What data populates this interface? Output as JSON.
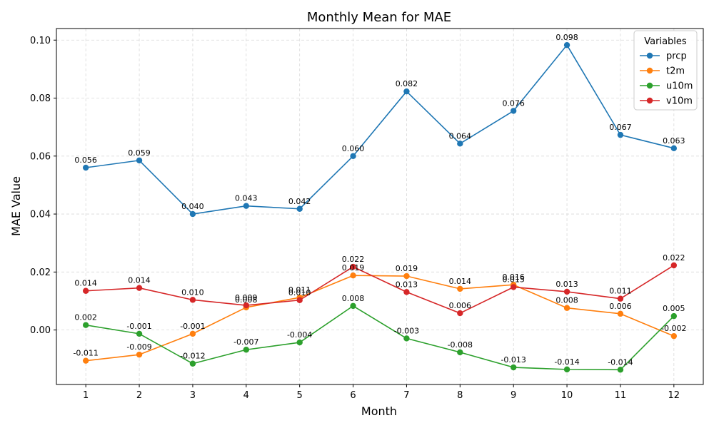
{
  "chart_data": {
    "type": "line",
    "title": "Monthly Mean for MAE",
    "xlabel": "Month",
    "ylabel": "MAE Value",
    "x": [
      1,
      2,
      3,
      4,
      5,
      6,
      7,
      8,
      9,
      10,
      11,
      12
    ],
    "xticks": [
      "1",
      "2",
      "3",
      "4",
      "5",
      "6",
      "7",
      "8",
      "9",
      "10",
      "11",
      "12"
    ],
    "yticks": [
      "0.00",
      "0.02",
      "0.04",
      "0.06",
      "0.08",
      "0.10"
    ],
    "ylim": [
      -0.0188,
      0.104
    ],
    "xlim": [
      0.45,
      12.55
    ],
    "grid": true,
    "legend": {
      "title": "Variables",
      "placement": "top-right"
    },
    "series": [
      {
        "name": "prcp",
        "color": "#1f77b4",
        "values": [
          0.056,
          0.0585,
          0.04,
          0.0428,
          0.0418,
          0.06,
          0.0823,
          0.0643,
          0.0756,
          0.0983,
          0.0673,
          0.0627
        ],
        "labels": [
          "0.056",
          "0.059",
          "0.040",
          "0.043",
          "0.042",
          "0.060",
          "0.082",
          "0.064",
          "0.076",
          "0.098",
          "0.067",
          "0.063"
        ]
      },
      {
        "name": "t2m",
        "color": "#ff7f0e",
        "values": [
          -0.0106,
          -0.0085,
          -0.0013,
          0.0078,
          0.0112,
          0.0188,
          0.0186,
          0.0142,
          0.0156,
          0.0076,
          0.0056,
          -0.0021
        ],
        "labels": [
          "-0.011",
          "-0.009",
          "-0.001",
          "0.008",
          "0.011",
          "0.019",
          "0.019",
          "0.014",
          "0.016",
          "0.008",
          "0.006",
          "-0.002"
        ]
      },
      {
        "name": "u10m",
        "color": "#2ca02c",
        "values": [
          0.0017,
          -0.0013,
          -0.0116,
          -0.0068,
          -0.0043,
          0.0083,
          -0.0029,
          -0.0077,
          -0.0129,
          -0.0136,
          -0.0137,
          0.0048
        ],
        "labels": [
          "0.002",
          "-0.001",
          "-0.012",
          "-0.007",
          "-0.004",
          "0.008",
          "-0.003",
          "-0.008",
          "-0.013",
          "-0.014",
          "-0.014",
          "0.005"
        ]
      },
      {
        "name": "v10m",
        "color": "#d62728",
        "values": [
          0.0135,
          0.0145,
          0.0104,
          0.0085,
          0.0103,
          0.0218,
          0.0131,
          0.0058,
          0.0148,
          0.0132,
          0.0108,
          0.0223
        ],
        "labels": [
          "0.014",
          "0.014",
          "0.010",
          "0.009",
          "0.010",
          "0.022",
          "0.013",
          "0.006",
          "0.015",
          "0.013",
          "0.011",
          "0.022"
        ]
      }
    ]
  }
}
